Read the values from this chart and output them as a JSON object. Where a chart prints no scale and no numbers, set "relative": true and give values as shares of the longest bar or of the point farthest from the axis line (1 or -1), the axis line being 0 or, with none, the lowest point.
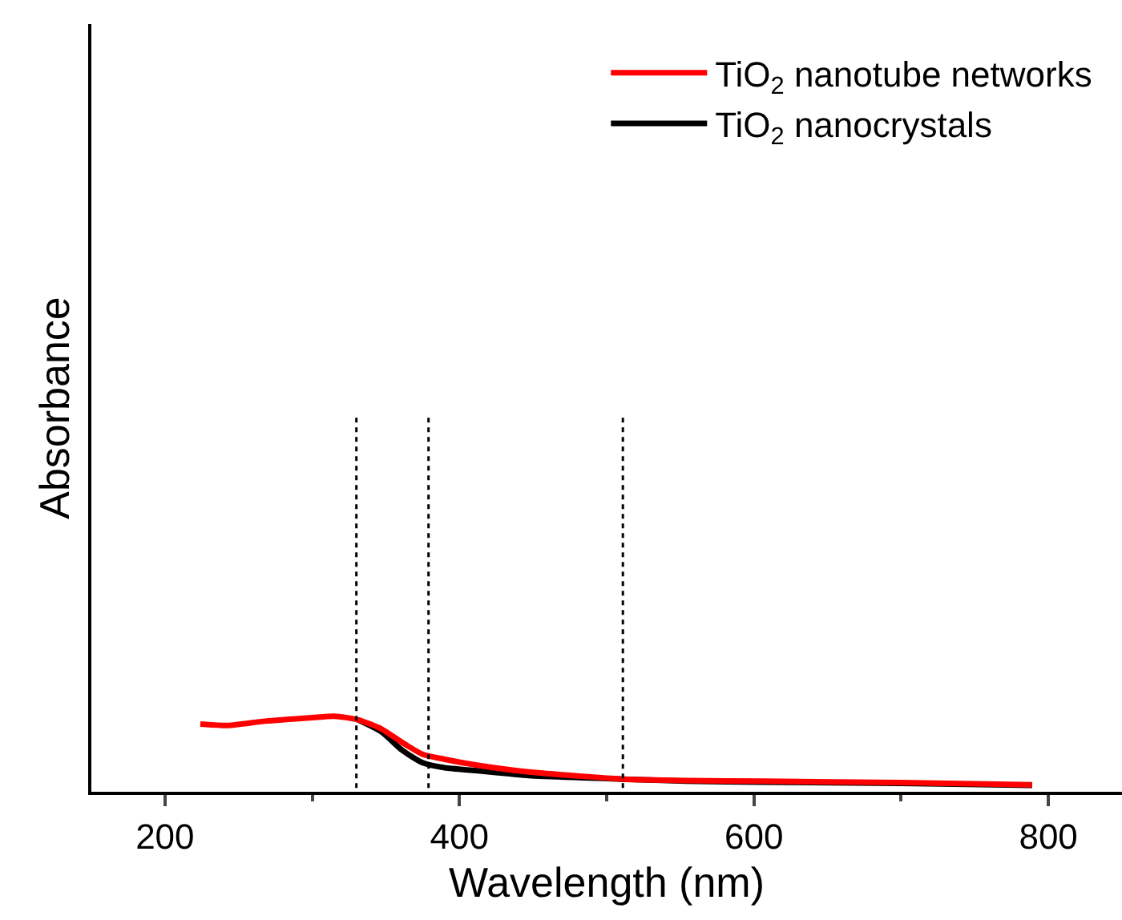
{
  "chart_data": {
    "type": "line",
    "xlabel": "Wavelength (nm)",
    "ylabel": "Absorbance",
    "relative": true,
    "xlim": [
      150,
      850
    ],
    "xticks": [
      200,
      {
        "value": 300,
        "label": null
      },
      400,
      {
        "value": 500,
        "label": null
      },
      600,
      {
        "value": 700,
        "label": null
      },
      800
    ],
    "tick_labels": "x",
    "legend": "top right",
    "marker": "none",
    "line_style": "solid",
    "ref_lines": [
      {
        "axis": "x",
        "value": 330,
        "line_style": "dotted",
        "color": "#000000"
      },
      {
        "axis": "x",
        "value": 379,
        "line_style": "dotted",
        "color": "#000000"
      },
      {
        "axis": "x",
        "value": 511,
        "line_style": "dotted",
        "color": "#000000"
      }
    ],
    "series": [
      {
        "name": "TiO$_{2}$ nanocrystals",
        "color": "#000000",
        "x": [
          331,
          347,
          361,
          375,
          390,
          411,
          447,
          483,
          511,
          554,
          607,
          700,
          789
        ],
        "values": [
          0.95,
          0.78,
          0.52,
          0.34,
          0.27,
          0.23,
          0.16,
          0.13,
          0.11,
          0.08,
          0.065,
          0.05,
          0.02
        ]
      },
      {
        "name": "TiO$_{2}$ nanotube networks",
        "color": "#ff0000",
        "x": [
          224,
          243,
          268,
          300,
          315,
          331,
          347,
          361,
          375,
          390,
          411,
          447,
          483,
          511,
          554,
          607,
          700,
          789
        ],
        "values": [
          0.89,
          0.87,
          0.93,
          0.98,
          1.0,
          0.95,
          0.82,
          0.63,
          0.46,
          0.39,
          0.31,
          0.21,
          0.15,
          0.11,
          0.09,
          0.08,
          0.06,
          0.03
        ]
      }
    ]
  }
}
